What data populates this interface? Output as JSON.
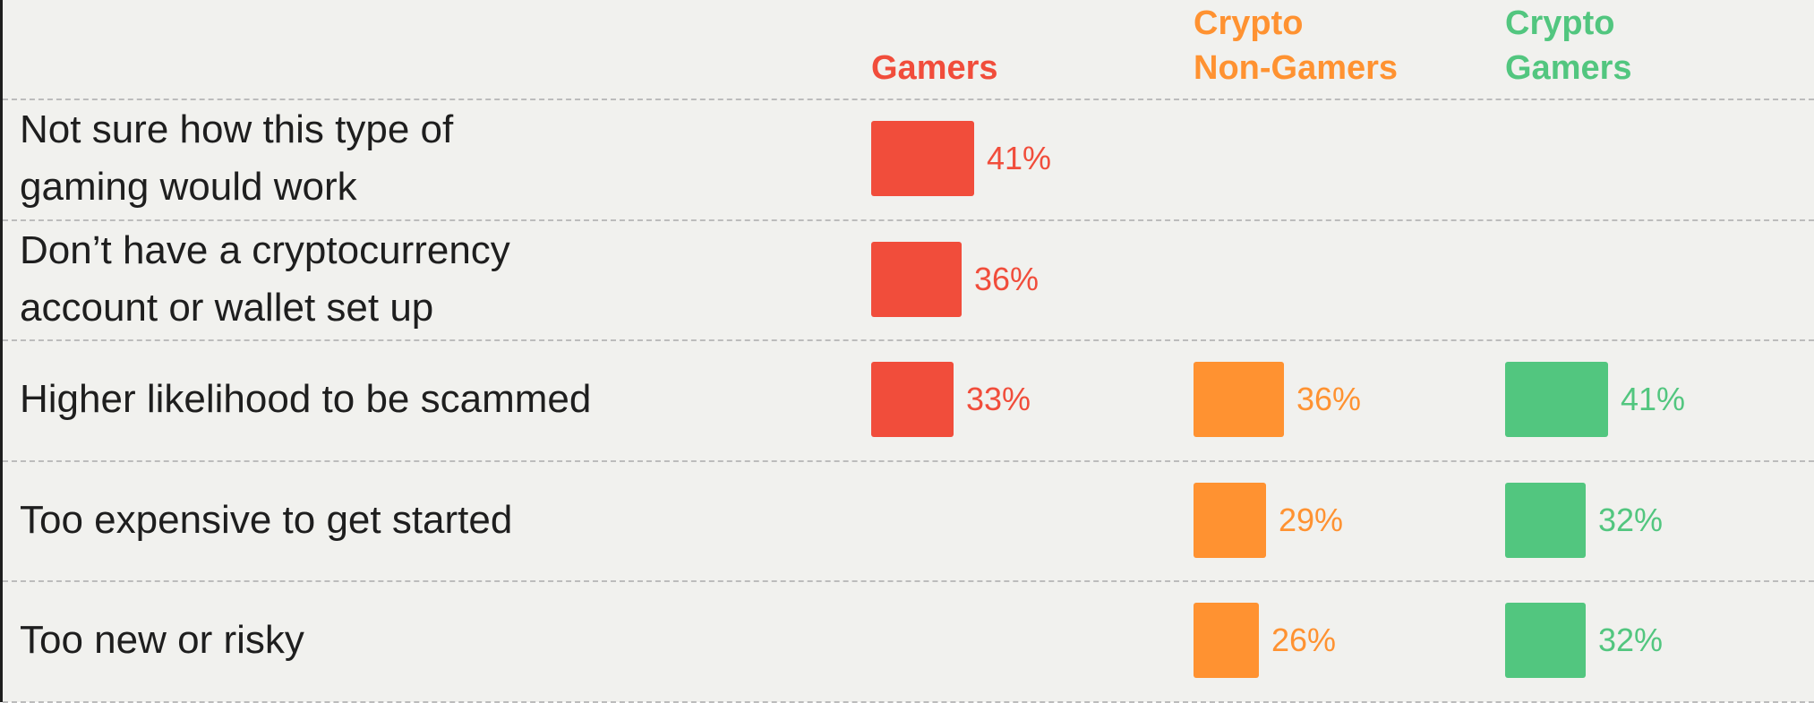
{
  "chart_data": {
    "type": "bar",
    "categories": [
      "Not sure how this type of gaming would work",
      "Don’t have a cryptocurrency account or wallet set up",
      "Higher likelihood to be scammed",
      "Too expensive to get started",
      "Too new or risky"
    ],
    "category_lines": [
      [
        "Not sure how this type of",
        "gaming would work"
      ],
      [
        "Don’t have a cryptocurrency",
        "account or wallet set up"
      ],
      [
        "Higher likelihood to be scammed"
      ],
      [
        "Too expensive to get started"
      ],
      [
        "Too new or risky"
      ]
    ],
    "series": [
      {
        "name": "Gamers",
        "name_lines": [
          "Gamers"
        ],
        "color": "#f14d3b",
        "values": [
          41,
          36,
          33,
          null,
          null
        ],
        "labels": [
          "41%",
          "36%",
          "33%",
          null,
          null
        ]
      },
      {
        "name": "Crypto Non-Gamers",
        "name_lines": [
          "Crypto",
          "Non-Gamers"
        ],
        "color": "#ff9231",
        "values": [
          null,
          null,
          36,
          29,
          26
        ],
        "labels": [
          null,
          null,
          "36%",
          "29%",
          "26%"
        ]
      },
      {
        "name": "Crypto Gamers",
        "name_lines": [
          "Crypto",
          "Gamers"
        ],
        "color": "#52c67f",
        "values": [
          null,
          null,
          41,
          32,
          32
        ],
        "labels": [
          null,
          null,
          "41%",
          "32%",
          "32%"
        ]
      }
    ],
    "value_unit": "%",
    "grid": false,
    "legend": "top"
  }
}
